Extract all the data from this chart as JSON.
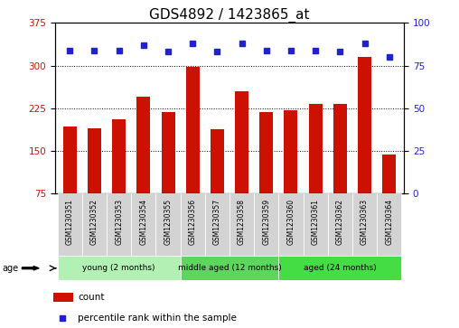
{
  "title": "GDS4892 / 1423865_at",
  "samples": [
    "GSM1230351",
    "GSM1230352",
    "GSM1230353",
    "GSM1230354",
    "GSM1230355",
    "GSM1230356",
    "GSM1230357",
    "GSM1230358",
    "GSM1230359",
    "GSM1230360",
    "GSM1230361",
    "GSM1230362",
    "GSM1230363",
    "GSM1230364"
  ],
  "counts": [
    193,
    190,
    205,
    245,
    218,
    298,
    188,
    255,
    218,
    222,
    232,
    232,
    315,
    143
  ],
  "percentile_ranks": [
    84,
    84,
    84,
    87,
    83,
    88,
    83,
    88,
    84,
    84,
    84,
    83,
    88,
    80
  ],
  "bar_color": "#cc1100",
  "dot_color": "#2222cc",
  "ylim_left": [
    75,
    375
  ],
  "ylim_right": [
    0,
    100
  ],
  "yticks_left": [
    75,
    150,
    225,
    300,
    375
  ],
  "yticks_right": [
    0,
    25,
    50,
    75,
    100
  ],
  "groups": [
    {
      "label": "young (2 months)",
      "start": 0,
      "end": 5,
      "color": "#b3f0b3"
    },
    {
      "label": "middle aged (12 months)",
      "start": 5,
      "end": 9,
      "color": "#5cd65c"
    },
    {
      "label": "aged (24 months)",
      "start": 9,
      "end": 14,
      "color": "#44dd44"
    }
  ],
  "age_label": "age",
  "legend_count_label": "count",
  "legend_pct_label": "percentile rank within the sample",
  "background_color": "#ffffff",
  "plot_bg_color": "#ffffff",
  "title_fontsize": 11,
  "tick_fontsize": 7.5,
  "label_fontsize": 7.5
}
